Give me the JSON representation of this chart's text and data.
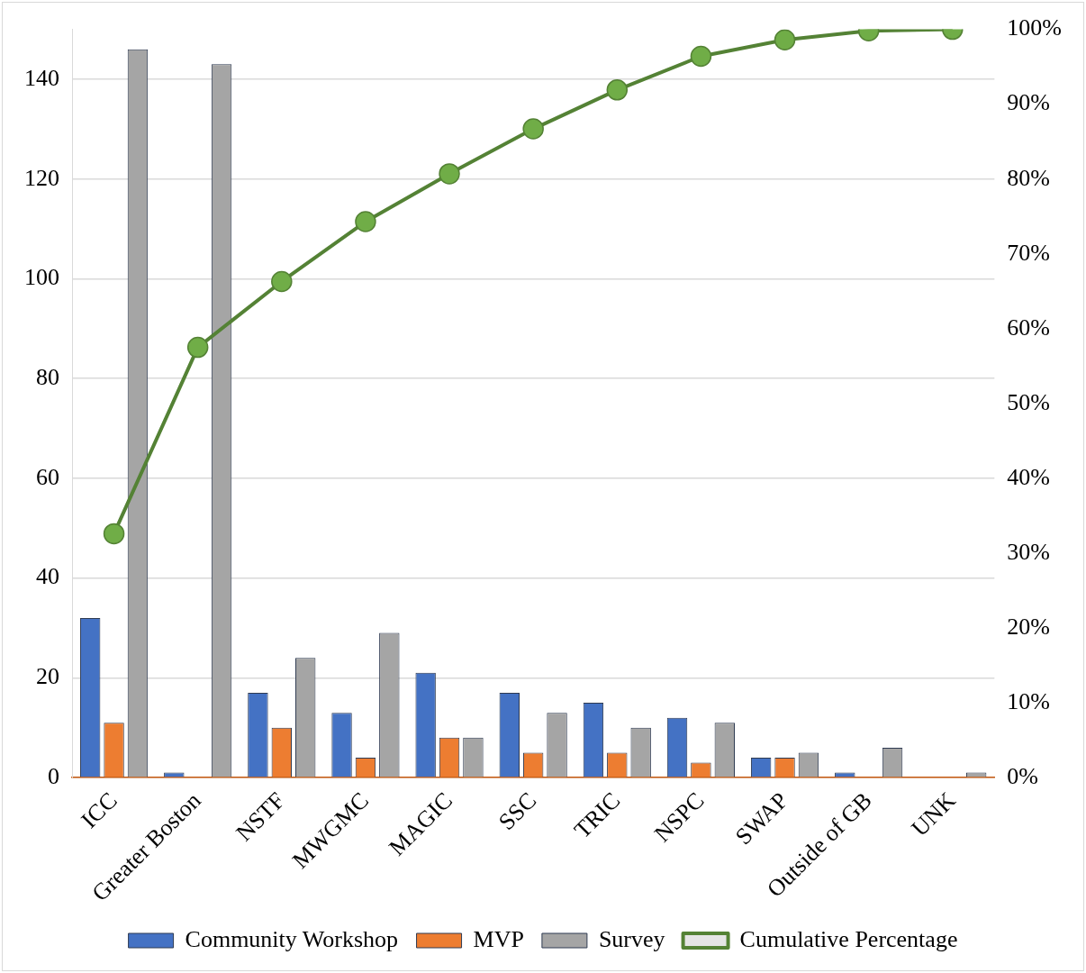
{
  "chart_data": {
    "type": "bar",
    "categories": [
      "ICC",
      "Greater Boston",
      "NSTF",
      "MWGMC",
      "MAGIC",
      "SSC",
      "TRIC",
      "NSPC",
      "SWAP",
      "Outside of GB",
      "UNK"
    ],
    "series": [
      {
        "name": "Community Workshop",
        "color": "#4472c4",
        "values": [
          32,
          1,
          17,
          13,
          21,
          17,
          15,
          12,
          4,
          1,
          0
        ]
      },
      {
        "name": "MVP",
        "color": "#ed7d31",
        "values": [
          11,
          0,
          10,
          4,
          8,
          5,
          5,
          3,
          4,
          0,
          0
        ]
      },
      {
        "name": "Survey",
        "color": "#a5a5a5",
        "values": [
          146,
          143,
          24,
          29,
          8,
          13,
          10,
          11,
          5,
          6,
          1
        ]
      },
      {
        "name": "Cumulative Percentage",
        "type": "line",
        "axis": "y2",
        "color": "#548235",
        "values": [
          32.6,
          57.5,
          66.3,
          74.3,
          80.7,
          86.7,
          91.9,
          96.4,
          98.6,
          99.8,
          100
        ]
      }
    ],
    "ylim": [
      0,
      150
    ],
    "yticks": [
      0,
      20,
      40,
      60,
      80,
      100,
      120,
      140
    ],
    "y2lim": [
      0,
      100
    ],
    "y2ticks": [
      {
        "value": 0,
        "label": "0%"
      },
      {
        "value": 10,
        "label": "10%"
      },
      {
        "value": 20,
        "label": "20%"
      },
      {
        "value": 30,
        "label": "30%"
      },
      {
        "value": 40,
        "label": "40%"
      },
      {
        "value": 50,
        "label": "50%"
      },
      {
        "value": 60,
        "label": "60%"
      },
      {
        "value": 70,
        "label": "70%"
      },
      {
        "value": 80,
        "label": "80%"
      },
      {
        "value": 90,
        "label": "90%"
      },
      {
        "value": 100,
        "label": "100%"
      }
    ],
    "grid": "y",
    "legend": "bottom",
    "marker": "circle",
    "line_style": "solid"
  }
}
